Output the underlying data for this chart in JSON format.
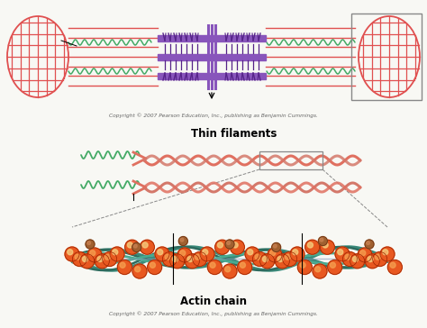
{
  "bg_color": "#f8f8f4",
  "title_thin": "Thin filaments",
  "title_actin": "Actin chain",
  "copyright": "Copyright © 2007 Pearson Education, Inc., publishing as Benjamin Cummings.",
  "purple_color": "#8855BB",
  "purple_dark": "#552288",
  "purple_mid": "#9966CC",
  "red_color": "#E05050",
  "pink_color": "#E88080",
  "salmon_color": "#E07060",
  "salmon2_color": "#D4786A",
  "green_color": "#44AA66",
  "dark_green": "#336644",
  "teal_color": "#3A8A7A",
  "teal2_color": "#2D6B5E",
  "orange_sphere": "#E85820",
  "orange_hi": "#F5A050",
  "yellow_hi": "#F5D080",
  "brown_sphere": "#A06030",
  "brown_hi": "#C88050",
  "gray_line": "#888888"
}
